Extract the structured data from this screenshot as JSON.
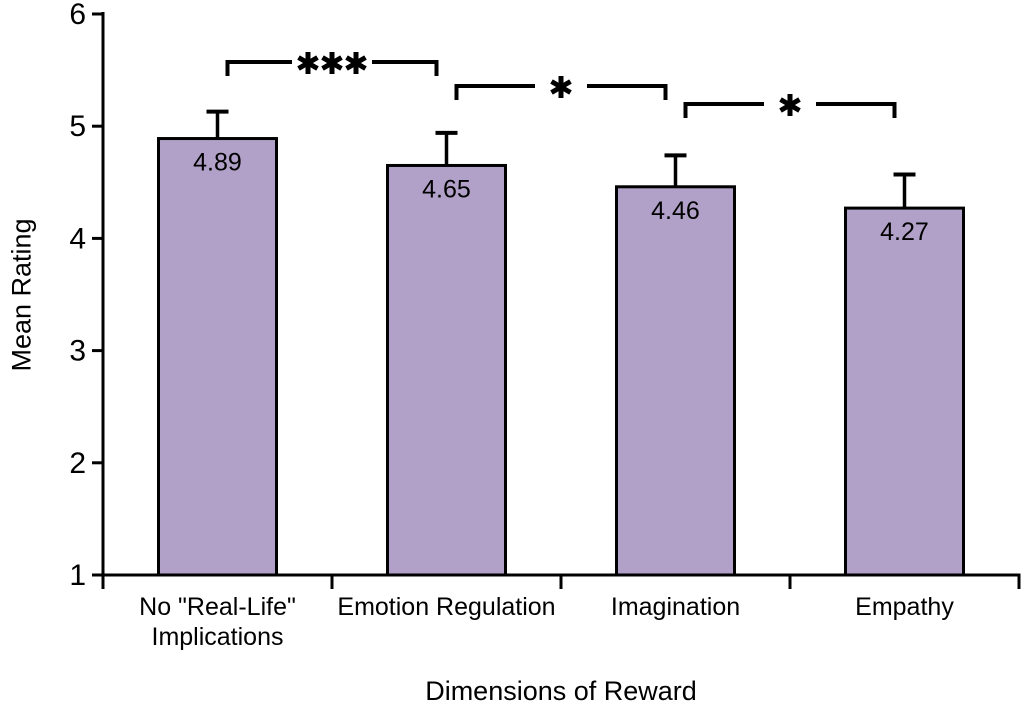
{
  "chart_data": {
    "type": "bar",
    "title": "",
    "xlabel": "Dimensions of Reward",
    "ylabel": "Mean Rating",
    "categories": [
      "No \"Real-Life\"\nImplications",
      "Emotion Regulation",
      "Imagination",
      "Empathy"
    ],
    "values": [
      4.89,
      4.65,
      4.46,
      4.27
    ],
    "value_labels": [
      "4.89",
      "4.65",
      "4.46",
      "4.27"
    ],
    "errors_upper": [
      0.24,
      0.29,
      0.28,
      0.3
    ],
    "ylim": [
      1,
      6
    ],
    "yticks": [
      1,
      2,
      3,
      4,
      5,
      6
    ],
    "grid": false,
    "legend_position": "none",
    "bar_fill_color": "#b1a0c7",
    "bar_border_color": "#000000",
    "significance_brackets": [
      {
        "from": 0,
        "to": 1,
        "label": "***"
      },
      {
        "from": 1,
        "to": 2,
        "label": "*"
      },
      {
        "from": 2,
        "to": 3,
        "label": "*"
      }
    ]
  }
}
